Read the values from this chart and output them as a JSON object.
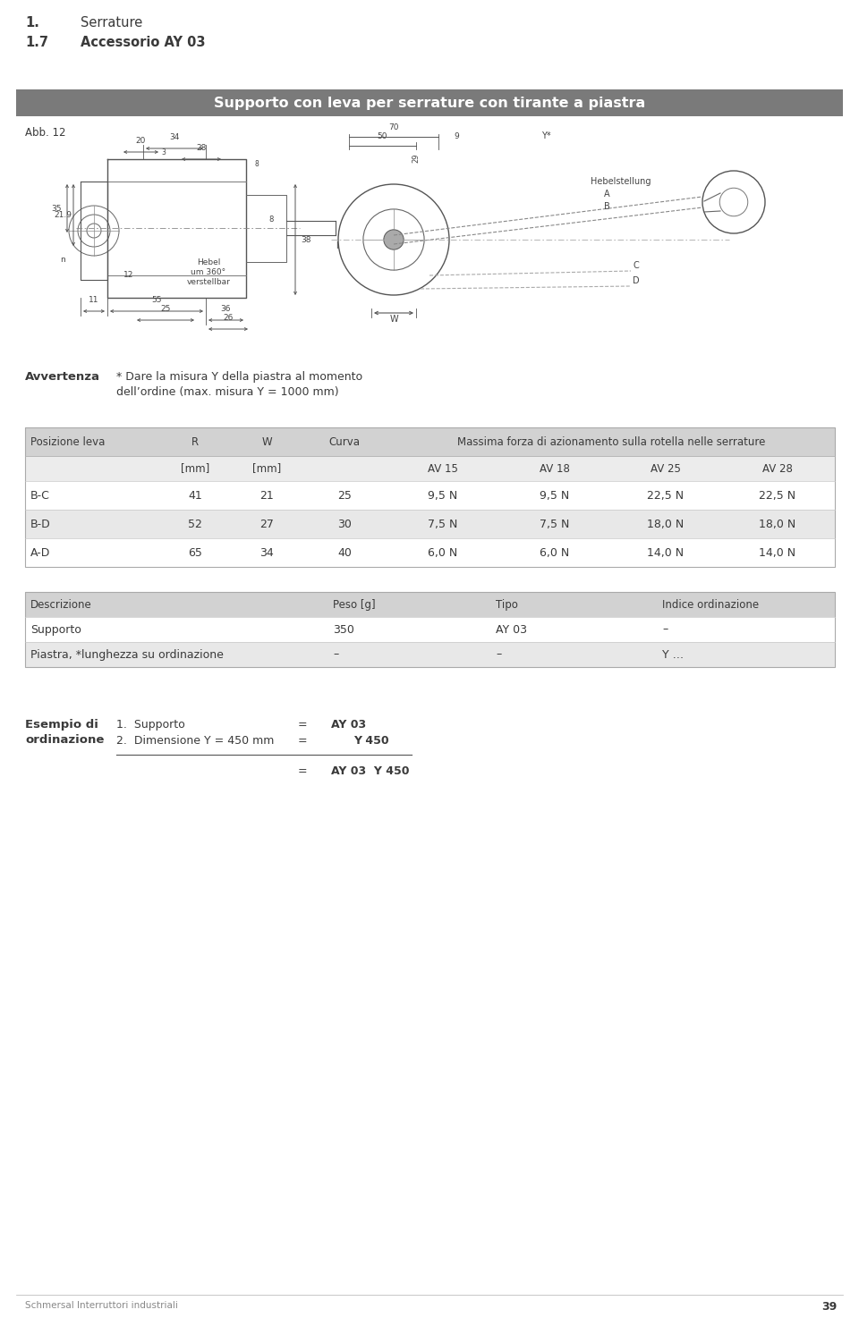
{
  "page_width": 9.6,
  "page_height": 14.74,
  "bg_color": "#ffffff",
  "header_section_number": "1.",
  "header_section_title": "Serrature",
  "header_subsection_number": "1.7",
  "header_subsection_title": "Accessorio AY 03",
  "gray_bar_text": "Supporto con leva per serrature con tirante a piastra",
  "gray_bar_color": "#7a7a7a",
  "gray_bar_text_color": "#ffffff",
  "avvertenza_label": "Avvertenza",
  "avvertenza_line1": "* Dare la misura Y della piastra al momento",
  "avvertenza_line2": "dell’ordine (max. misura Y = 1000 mm)",
  "table1_header_cols": [
    "Posizione leva",
    "R",
    "W",
    "Curva",
    "Massima forza di azionamento sulla rotella nelle serrature"
  ],
  "table1_subheader": [
    "",
    "[mm]",
    "[mm]",
    "",
    "AV 15",
    "AV 18",
    "AV 25",
    "AV 28"
  ],
  "table1_rows": [
    [
      "B-C",
      "41",
      "21",
      "25",
      "9,5 N",
      "9,5 N",
      "22,5 N",
      "22,5 N"
    ],
    [
      "B-D",
      "52",
      "27",
      "30",
      "7,5 N",
      "7,5 N",
      "18,0 N",
      "18,0 N"
    ],
    [
      "A-D",
      "65",
      "34",
      "40",
      "6,0 N",
      "6,0 N",
      "14,0 N",
      "14,0 N"
    ]
  ],
  "table1_row_colors": [
    "#ffffff",
    "#e8e8e8",
    "#ffffff"
  ],
  "table1_header_bg": "#d2d2d2",
  "table2_header_cols": [
    "Descrizione",
    "Peso [g]",
    "Tipo",
    "Indice ordinazione"
  ],
  "table2_rows": [
    [
      "Supporto",
      "350",
      "AY 03",
      "–"
    ],
    [
      "Piastra, *lunghezza su ordinazione",
      "–",
      "–",
      "Y …"
    ]
  ],
  "table2_row_colors": [
    "#ffffff",
    "#e8e8e8"
  ],
  "table2_header_bg": "#d2d2d2",
  "esempio_lines": [
    {
      "num": "1.",
      "desc": "Supporto",
      "eq": "=",
      "val": "AY 03"
    },
    {
      "num": "2.",
      "desc": "Dimensione Y = 450 mm",
      "eq": "=",
      "val": "Y 450"
    }
  ],
  "footer_text": "Schmersal Interruttori industriali",
  "footer_page": "39",
  "text_color": "#3a3a3a",
  "dim_color": "#555555"
}
